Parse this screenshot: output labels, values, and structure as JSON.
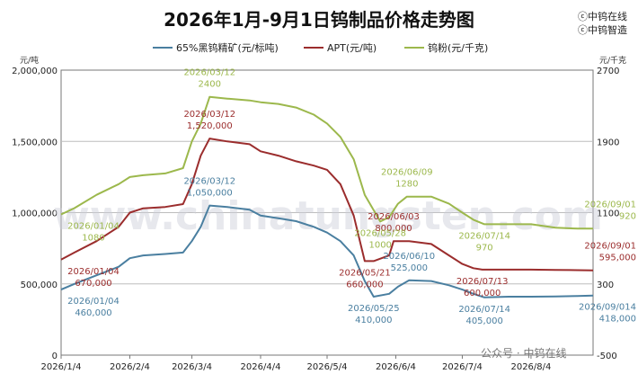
{
  "page": {
    "title": "2026年1月-9月1日钨制品价格走势图",
    "brand_lines": [
      "ⓒ中钨在线",
      "ⓒ中钨智造"
    ],
    "wechat": "公众号 · 中钨在线",
    "watermark": "www.chinatungsten.com",
    "left_unit": "元/吨",
    "right_unit": "元/千克"
  },
  "chart_data": {
    "type": "line",
    "title": "2026年1月-9月1日钨制品价格走势图",
    "xlabel": "",
    "ylabel_left": "元/吨",
    "ylabel_right": "元/千克",
    "x_range": [
      "2026-01-04",
      "2026-09-01"
    ],
    "x_ticks": [
      "2026/1/4",
      "2026/2/4",
      "2026/3/4",
      "2026/4/4",
      "2026/5/4",
      "2026/6/4",
      "2026/7/4",
      "2026/8/4"
    ],
    "x_tick_dates": [
      "2026-01-04",
      "2026-02-04",
      "2026-03-04",
      "2026-04-04",
      "2026-05-04",
      "2026-06-04",
      "2026-07-04",
      "2026-08-04"
    ],
    "y_left_range": [
      0,
      2000000
    ],
    "y_left_ticks": [
      "0",
      "500,000",
      "1,000,000",
      "1,500,000",
      "2,000,000"
    ],
    "y_left_tick_values": [
      0,
      500000,
      1000000,
      1500000,
      2000000
    ],
    "y_right_range": [
      -500,
      2700
    ],
    "y_right_ticks": [
      "-500",
      "300",
      "1100",
      "1900",
      "2700"
    ],
    "y_right_tick_values": [
      -500,
      300,
      1100,
      1900,
      2700
    ],
    "grid": "horizontal",
    "legend_position": "top",
    "series": [
      {
        "name": "65%黑钨精矿(元/标吨)",
        "axis": "left",
        "color": "#4a7fa0",
        "x": [
          "2026-01-04",
          "2026-01-10",
          "2026-01-20",
          "2026-01-30",
          "2026-02-04",
          "2026-02-10",
          "2026-02-20",
          "2026-02-28",
          "2026-03-04",
          "2026-03-08",
          "2026-03-12",
          "2026-03-20",
          "2026-03-30",
          "2026-04-04",
          "2026-04-12",
          "2026-04-20",
          "2026-04-28",
          "2026-05-04",
          "2026-05-10",
          "2026-05-16",
          "2026-05-21",
          "2026-05-25",
          "2026-06-01",
          "2026-06-05",
          "2026-06-10",
          "2026-06-20",
          "2026-06-28",
          "2026-07-04",
          "2026-07-09",
          "2026-07-14",
          "2026-07-25",
          "2026-08-04",
          "2026-08-15",
          "2026-08-25",
          "2026-09-01"
        ],
        "y": [
          460000,
          500000,
          560000,
          620000,
          680000,
          700000,
          710000,
          720000,
          800000,
          900000,
          1050000,
          1040000,
          1020000,
          980000,
          960000,
          940000,
          900000,
          860000,
          800000,
          700000,
          520000,
          410000,
          430000,
          480000,
          525000,
          520000,
          490000,
          460000,
          430000,
          405000,
          410000,
          410000,
          412000,
          415000,
          418000
        ]
      },
      {
        "name": "APT(元/吨)",
        "axis": "left",
        "color": "#9b2d2d",
        "x": [
          "2026-01-04",
          "2026-01-10",
          "2026-01-20",
          "2026-01-30",
          "2026-02-04",
          "2026-02-10",
          "2026-02-20",
          "2026-02-28",
          "2026-03-04",
          "2026-03-08",
          "2026-03-12",
          "2026-03-20",
          "2026-03-30",
          "2026-04-04",
          "2026-04-12",
          "2026-04-20",
          "2026-04-28",
          "2026-05-04",
          "2026-05-10",
          "2026-05-16",
          "2026-05-21",
          "2026-05-25",
          "2026-06-01",
          "2026-06-03",
          "2026-06-10",
          "2026-06-20",
          "2026-06-28",
          "2026-07-04",
          "2026-07-09",
          "2026-07-13",
          "2026-07-25",
          "2026-08-04",
          "2026-08-15",
          "2026-08-25",
          "2026-09-01"
        ],
        "y": [
          670000,
          720000,
          800000,
          900000,
          1000000,
          1030000,
          1040000,
          1060000,
          1200000,
          1400000,
          1520000,
          1500000,
          1480000,
          1430000,
          1400000,
          1360000,
          1330000,
          1300000,
          1200000,
          980000,
          660000,
          660000,
          700000,
          800000,
          800000,
          780000,
          700000,
          640000,
          610000,
          600000,
          600000,
          600000,
          598000,
          596000,
          595000
        ]
      },
      {
        "name": "钨粉(元/千克)",
        "axis": "right",
        "color": "#9cb84c",
        "x": [
          "2026-01-04",
          "2026-01-10",
          "2026-01-20",
          "2026-01-30",
          "2026-02-04",
          "2026-02-10",
          "2026-02-20",
          "2026-02-28",
          "2026-03-04",
          "2026-03-08",
          "2026-03-12",
          "2026-03-20",
          "2026-03-30",
          "2026-04-04",
          "2026-04-12",
          "2026-04-20",
          "2026-04-28",
          "2026-05-04",
          "2026-05-10",
          "2026-05-16",
          "2026-05-21",
          "2026-05-28",
          "2026-06-01",
          "2026-06-05",
          "2026-06-09",
          "2026-06-20",
          "2026-06-28",
          "2026-07-04",
          "2026-07-09",
          "2026-07-14",
          "2026-07-25",
          "2026-08-04",
          "2026-08-15",
          "2026-08-25",
          "2026-09-01"
        ],
        "y": [
          1080,
          1150,
          1300,
          1420,
          1500,
          1520,
          1540,
          1600,
          1900,
          2100,
          2400,
          2380,
          2360,
          2340,
          2320,
          2280,
          2200,
          2100,
          1950,
          1700,
          1300,
          1000,
          1050,
          1200,
          1280,
          1280,
          1200,
          1100,
          1020,
          970,
          970,
          970,
          930,
          920,
          920
        ]
      }
    ],
    "annotations": [
      {
        "series": "65%黑钨精矿(元/标吨)",
        "date": "2026/01/04",
        "value": "460,000",
        "x": "2026-01-04",
        "y": 460000,
        "place": "below"
      },
      {
        "series": "65%黑钨精矿(元/标吨)",
        "date": "2026/03/12",
        "value": "1,050,000",
        "x": "2026-03-12",
        "y": 1050000,
        "place": "above"
      },
      {
        "series": "65%黑钨精矿(元/标吨)",
        "date": "2026/05/25",
        "value": "410,000",
        "x": "2026-05-25",
        "y": 410000,
        "place": "below"
      },
      {
        "series": "65%黑钨精矿(元/标吨)",
        "date": "2026/06/10",
        "value": "525,000",
        "x": "2026-06-10",
        "y": 525000,
        "place": "above"
      },
      {
        "series": "65%黑钨精矿(元/标吨)",
        "date": "2026/07/14",
        "value": "405,000",
        "x": "2026-07-14",
        "y": 405000,
        "place": "below"
      },
      {
        "series": "65%黑钨精矿(元/标吨)",
        "date": "2026/09/014",
        "value": "418,000",
        "x": "2026-09-01",
        "y": 418000,
        "place": "below-left"
      },
      {
        "series": "APT(元/吨)",
        "date": "2026/01/04",
        "value": "670,000",
        "x": "2026-01-04",
        "y": 670000,
        "place": "below"
      },
      {
        "series": "APT(元/吨)",
        "date": "2026/03/12",
        "value": "1,520,000",
        "x": "2026-03-12",
        "y": 1520000,
        "place": "above"
      },
      {
        "series": "APT(元/吨)",
        "date": "2026/05/21",
        "value": "660,000",
        "x": "2026-05-21",
        "y": 660000,
        "place": "below"
      },
      {
        "series": "APT(元/吨)",
        "date": "2026/06/03",
        "value": "800,000",
        "x": "2026-06-03",
        "y": 800000,
        "place": "above"
      },
      {
        "series": "APT(元/吨)",
        "date": "2026/07/13",
        "value": "600,000",
        "x": "2026-07-13",
        "y": 600000,
        "place": "below"
      },
      {
        "series": "APT(元/吨)",
        "date": "2026/09/01",
        "value": "595,000",
        "x": "2026-09-01",
        "y": 595000,
        "place": "above-left"
      },
      {
        "series": "钨粉(元/千克)",
        "date": "2026/01/04",
        "value": "1080",
        "x": "2026-01-04",
        "y": 1080,
        "place": "below"
      },
      {
        "series": "钨粉(元/千克)",
        "date": "2026/03/12",
        "value": "2400",
        "x": "2026-03-12",
        "y": 2400,
        "place": "above"
      },
      {
        "series": "钨粉(元/千克)",
        "date": "2026/05/28",
        "value": "1000",
        "x": "2026-05-28",
        "y": 1000,
        "place": "below"
      },
      {
        "series": "钨粉(元/千克)",
        "date": "2026/06/09",
        "value": "1280",
        "x": "2026-06-09",
        "y": 1280,
        "place": "above"
      },
      {
        "series": "钨粉(元/千克)",
        "date": "2026/07/14",
        "value": "970",
        "x": "2026-07-14",
        "y": 970,
        "place": "below"
      },
      {
        "series": "钨粉(元/千克)",
        "date": "2026/09/01",
        "value": "920",
        "x": "2026-09-01",
        "y": 920,
        "place": "above-left"
      }
    ]
  }
}
